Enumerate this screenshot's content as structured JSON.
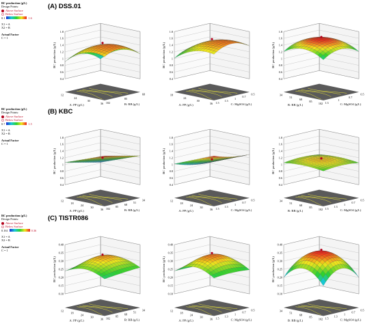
{
  "legends": [
    {
      "title": "BC production (g/L)",
      "design_points": "Design Points:",
      "above": "Above Surface",
      "below": "Below Surface",
      "range_min": "0.1",
      "range_max": "1.6",
      "x1": "X1 = A",
      "x2": "X2 = B",
      "actual_factor": "Actual Factor",
      "factor_value": "C = 1"
    },
    {
      "title": "BC production (g/L)",
      "design_points": "Design Points:",
      "above": "Above Surface",
      "below": "Below Surface",
      "range_min": "0.7",
      "range_max": "1.5",
      "x1": "X1 = A",
      "x2": "X2 = B",
      "actual_factor": "Actual Factor",
      "factor_value": "C = 1"
    },
    {
      "title": "BC production (g/L)",
      "design_points": "Design Points:",
      "above": "Above Surface",
      "below": "Below Surface",
      "range_min": "0.161",
      "range_max": "0.36",
      "x1": "X1 = A",
      "x2": "X2 = B",
      "actual_factor": "Actual Factor",
      "factor_value": "C = 1"
    }
  ],
  "sections": [
    "(A) DSS.01",
    "(B) KBC",
    "(C) TISTR086"
  ],
  "colors": {
    "surface_low": "#1a28d6",
    "surface_mid": "#2ed12e",
    "surface_high": "#f01e1e",
    "floor": "#5a5a5a",
    "contour": "#e8e23a"
  },
  "chart_data": [
    {
      "type": "surface3d",
      "section": "(A) DSS.01",
      "zlabel": "BC production (g/L)",
      "xlabel": "A: PP (g/L)",
      "ylabel": "B: RB (g/L)",
      "xticks": [
        "12",
        "24",
        "30",
        "36"
      ],
      "yticks": [
        "68",
        "85",
        "102"
      ],
      "zticks": [
        "0.4",
        "0.6",
        "0.8",
        "1",
        "1.2",
        "1.4",
        "1.6",
        "1.8"
      ],
      "zlim": [
        0.4,
        1.8
      ],
      "surface_range": [
        0.4,
        1.6
      ]
    },
    {
      "type": "surface3d",
      "section": "(A) DSS.01",
      "zlabel": "BC production (g/L)",
      "xlabel": "A: PP (g/L)",
      "ylabel": "C: MgSO4 (g/L)",
      "xticks": [
        "18",
        "24",
        "30",
        "36"
      ],
      "yticks": [
        "0.5",
        "0.7",
        "1",
        "1.3",
        "1.5"
      ],
      "zticks": [
        "0.4",
        "0.6",
        "0.8",
        "1",
        "1.2",
        "1.4",
        "1.6",
        "1.8"
      ],
      "zlim": [
        0.4,
        1.8
      ],
      "surface_range": [
        0.6,
        1.7
      ]
    },
    {
      "type": "surface3d",
      "section": "(A) DSS.01",
      "zlabel": "BC production (g/L)",
      "xlabel": "B: RB (g/L)",
      "ylabel": "C: MgSO4 (g/L)",
      "xticks": [
        "34",
        "51",
        "68",
        "85",
        "102"
      ],
      "yticks": [
        "0.5",
        "0.7",
        "1",
        "1.3"
      ],
      "zticks": [
        "0.4",
        "0.6",
        "0.8",
        "1",
        "1.2",
        "1.4",
        "1.6",
        "1.8"
      ],
      "zlim": [
        0.4,
        1.8
      ],
      "surface_range": [
        1.0,
        1.6
      ]
    },
    {
      "type": "surface3d",
      "section": "(B) KBC",
      "zlabel": "BC production (g/L)",
      "xlabel": "A: PP (g/L)",
      "ylabel": "B: RB (g/L)",
      "xticks": [
        "12",
        "18",
        "24",
        "30",
        "36"
      ],
      "yticks": [
        "34",
        "51",
        "68",
        "85",
        "102"
      ],
      "zticks": [
        "0.4",
        "0.6",
        "0.8",
        "1",
        "1.2",
        "1.4",
        "1.6",
        "1.8"
      ],
      "zlim": [
        0.4,
        1.8
      ],
      "surface_range": [
        0.7,
        1.5
      ]
    },
    {
      "type": "surface3d",
      "section": "(B) KBC",
      "zlabel": "BC production (g/L)",
      "xlabel": "A: PP (g/L)",
      "ylabel": "C: MgSO4 (g/L)",
      "xticks": [
        "12",
        "18",
        "24",
        "30",
        "36"
      ],
      "yticks": [
        "0.5",
        "0.7",
        "1",
        "1.3",
        "1.5"
      ],
      "zticks": [
        "0.4",
        "0.6",
        "0.8",
        "1",
        "1.2",
        "1.4",
        "1.6",
        "1.8"
      ],
      "zlim": [
        0.4,
        1.8
      ],
      "surface_range": [
        0.7,
        1.5
      ]
    },
    {
      "type": "surface3d",
      "section": "(B) KBC",
      "zlabel": "BC production (g/L)",
      "xlabel": "B: RB (g/L)",
      "ylabel": "C: MgSO4 (g/L)",
      "xticks": [
        "34",
        "51",
        "68",
        "85",
        "102"
      ],
      "yticks": [
        "0.5",
        "0.7",
        "1",
        "1.3",
        "1.5"
      ],
      "zticks": [
        "0.4",
        "0.6",
        "0.8",
        "1",
        "1.2",
        "1.4",
        "1.6",
        "1.8"
      ],
      "zlim": [
        0.4,
        1.8
      ],
      "surface_range": [
        0.9,
        1.2
      ]
    },
    {
      "type": "surface3d",
      "section": "(C) TISTR086",
      "zlabel": "BC production (g/L)",
      "xlabel": "A: PP (g/L)",
      "ylabel": "B: RB (g/L)",
      "xticks": [
        "12",
        "18",
        "24",
        "30",
        "36"
      ],
      "yticks": [
        "34",
        "51",
        "68",
        "85",
        "102"
      ],
      "zticks": [
        "0.10",
        "0.15",
        "0.20",
        "0.25",
        "0.30",
        "0.35",
        "0.40"
      ],
      "zlim": [
        0.1,
        0.4
      ],
      "surface_range": [
        0.16,
        0.36
      ]
    },
    {
      "type": "surface3d",
      "section": "(C) TISTR086",
      "zlabel": "BC production (g/L)",
      "xlabel": "A: PP (g/L)",
      "ylabel": "C: MgSO4 (g/L)",
      "xticks": [
        "12",
        "18",
        "24",
        "30",
        "36"
      ],
      "yticks": [
        "0.5",
        "0.7",
        "1",
        "1.3",
        "1.5"
      ],
      "zticks": [
        "0.10",
        "0.15",
        "0.20",
        "0.25",
        "0.30",
        "0.35",
        "0.40"
      ],
      "zlim": [
        0.1,
        0.4
      ],
      "surface_range": [
        0.16,
        0.36
      ]
    },
    {
      "type": "surface3d",
      "section": "(C) TISTR086",
      "zlabel": "BC production (g/L)",
      "xlabel": "B: RB (g/L)",
      "ylabel": "C: MgSO4 (g/L)",
      "xticks": [
        "34",
        "51",
        "68",
        "85",
        "102"
      ],
      "yticks": [
        "0.5",
        "0.7",
        "1",
        "1.3",
        "1.5"
      ],
      "zticks": [
        "0.10",
        "0.15",
        "0.20",
        "0.25",
        "0.30",
        "0.35",
        "0.40"
      ],
      "zlim": [
        0.1,
        0.4
      ],
      "surface_range": [
        0.16,
        0.36
      ]
    }
  ]
}
